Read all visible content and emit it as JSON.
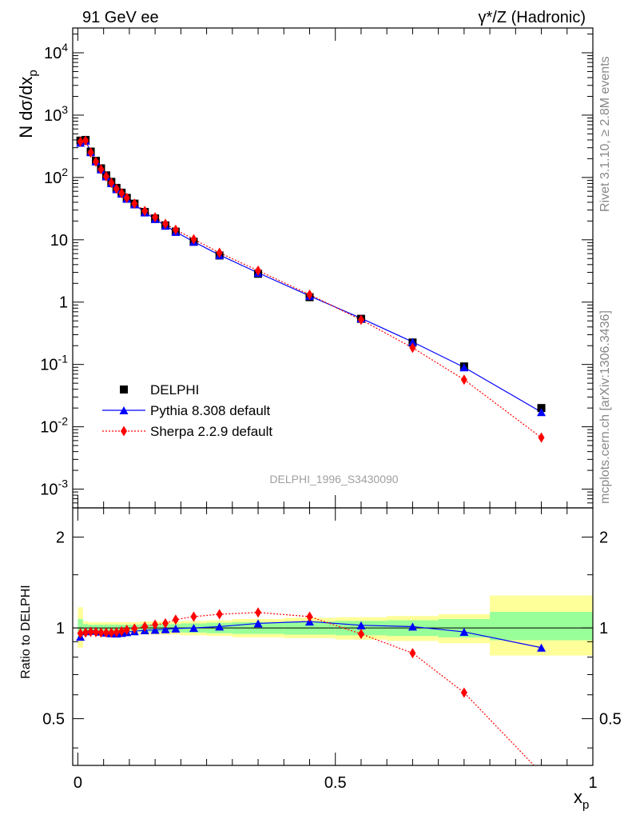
{
  "header": {
    "left": "91 GeV ee",
    "right": "γ*/Z (Hadronic)"
  },
  "side_labels": {
    "rivet": "Rivet 3.1.10, ≥ 2.8M events",
    "mcplots": "mcplots.cern.ch [arXiv:1306.3436]"
  },
  "analysis_tag": "DELPHI_1996_S3430090",
  "colors": {
    "data": "#000000",
    "pythia": "#0000ff",
    "sherpa": "#ff0000",
    "band_inner": "#99ff99",
    "band_outer": "#ffff99"
  },
  "chart_data": [
    {
      "type": "scatter",
      "panel": "main",
      "ylabel": "N dσ/dx_p",
      "yscale": "log",
      "ylim": [
        0.0005,
        25000
      ],
      "xlim": [
        -0.01,
        1.0
      ],
      "ytick_labels": [
        "10^-3",
        "10^-2",
        "10^-1",
        "1",
        "10",
        "10^2",
        "10^3",
        "10^4"
      ],
      "legend_position": "middle-left",
      "series": [
        {
          "name": "DELPHI",
          "style": "markers-square",
          "x": [
            0.005,
            0.015,
            0.025,
            0.035,
            0.045,
            0.055,
            0.065,
            0.075,
            0.085,
            0.095,
            0.11,
            0.13,
            0.15,
            0.17,
            0.19,
            0.225,
            0.275,
            0.35,
            0.45,
            0.55,
            0.65,
            0.75,
            0.9
          ],
          "y": [
            390,
            400,
            260,
            185,
            140,
            108,
            85,
            68,
            57,
            47,
            38,
            28,
            22,
            17,
            13.5,
            9.3,
            5.6,
            2.85,
            1.2,
            0.54,
            0.225,
            0.093,
            0.02
          ]
        },
        {
          "name": "Pythia 8.308 default",
          "style": "line-triangle",
          "x": [
            0.005,
            0.015,
            0.025,
            0.035,
            0.045,
            0.055,
            0.065,
            0.075,
            0.085,
            0.095,
            0.11,
            0.13,
            0.15,
            0.17,
            0.19,
            0.225,
            0.275,
            0.35,
            0.45,
            0.55,
            0.65,
            0.75,
            0.9
          ],
          "y": [
            360,
            390,
            255,
            181,
            135,
            104,
            81,
            65,
            55,
            45.5,
            37,
            27.5,
            21.5,
            16.8,
            13.4,
            9.3,
            5.7,
            2.95,
            1.26,
            0.55,
            0.23,
            0.09,
            0.0172
          ]
        },
        {
          "name": "Sherpa 2.2.9 default",
          "style": "dotted-diamond",
          "x": [
            0.005,
            0.015,
            0.025,
            0.035,
            0.045,
            0.055,
            0.065,
            0.075,
            0.085,
            0.095,
            0.11,
            0.13,
            0.15,
            0.17,
            0.19,
            0.225,
            0.275,
            0.35,
            0.45,
            0.55,
            0.65,
            0.75,
            0.9
          ],
          "y": [
            375,
            390,
            252,
            179,
            135,
            104,
            82,
            66,
            56,
            47,
            38,
            29,
            23,
            18,
            14.5,
            10.2,
            6.2,
            3.2,
            1.32,
            0.52,
            0.185,
            0.057,
            0.0067
          ]
        }
      ]
    },
    {
      "type": "line",
      "panel": "ratio",
      "ylabel": "Ratio to DELPHI",
      "xlabel": "x_p",
      "yscale": "log",
      "ylim": [
        0.35,
        2.5
      ],
      "xlim": [
        -0.01,
        1.0
      ],
      "xtick_labels": [
        "0",
        "0.5",
        "1"
      ],
      "ytick_labels": [
        "0.5",
        "1",
        "2"
      ],
      "reference_line": 1,
      "band": {
        "edges": [
          0.0,
          0.01,
          0.02,
          0.03,
          0.04,
          0.05,
          0.06,
          0.07,
          0.08,
          0.09,
          0.1,
          0.12,
          0.14,
          0.16,
          0.18,
          0.2,
          0.25,
          0.3,
          0.4,
          0.5,
          0.6,
          0.7,
          0.8,
          1.0
        ],
        "inner_lo": [
          0.93,
          0.97,
          0.975,
          0.975,
          0.975,
          0.975,
          0.975,
          0.975,
          0.975,
          0.975,
          0.975,
          0.97,
          0.97,
          0.97,
          0.97,
          0.965,
          0.96,
          0.955,
          0.95,
          0.945,
          0.94,
          0.93,
          0.91
        ],
        "inner_hi": [
          1.07,
          1.03,
          1.025,
          1.025,
          1.025,
          1.025,
          1.025,
          1.025,
          1.025,
          1.025,
          1.025,
          1.03,
          1.03,
          1.03,
          1.03,
          1.035,
          1.04,
          1.045,
          1.05,
          1.055,
          1.06,
          1.07,
          1.13
        ],
        "outer_lo": [
          0.86,
          0.95,
          0.955,
          0.955,
          0.955,
          0.955,
          0.955,
          0.955,
          0.955,
          0.955,
          0.955,
          0.95,
          0.95,
          0.95,
          0.95,
          0.945,
          0.94,
          0.93,
          0.925,
          0.915,
          0.905,
          0.89,
          0.81
        ],
        "outer_hi": [
          1.17,
          1.05,
          1.045,
          1.045,
          1.045,
          1.045,
          1.045,
          1.045,
          1.045,
          1.045,
          1.045,
          1.05,
          1.05,
          1.05,
          1.05,
          1.055,
          1.06,
          1.07,
          1.08,
          1.085,
          1.095,
          1.11,
          1.28
        ]
      },
      "series": [
        {
          "name": "Pythia 8.308 default",
          "x": [
            0.005,
            0.015,
            0.025,
            0.035,
            0.045,
            0.055,
            0.065,
            0.075,
            0.085,
            0.095,
            0.11,
            0.13,
            0.15,
            0.17,
            0.19,
            0.225,
            0.275,
            0.35,
            0.45,
            0.55,
            0.65,
            0.75,
            0.9
          ],
          "y": [
            0.935,
            0.975,
            0.98,
            0.978,
            0.972,
            0.965,
            0.96,
            0.958,
            0.962,
            0.968,
            0.975,
            0.982,
            0.985,
            0.99,
            0.995,
            1.0,
            1.01,
            1.035,
            1.05,
            1.02,
            1.01,
            0.97,
            0.86
          ]
        },
        {
          "name": "Sherpa 2.2.9 default",
          "x": [
            0.005,
            0.015,
            0.025,
            0.035,
            0.045,
            0.055,
            0.065,
            0.075,
            0.085,
            0.095,
            0.11,
            0.13,
            0.15,
            0.17,
            0.19,
            0.225,
            0.275,
            0.35,
            0.45,
            0.55,
            0.65,
            0.75,
            0.9
          ],
          "y": [
            0.96,
            0.965,
            0.97,
            0.968,
            0.965,
            0.965,
            0.965,
            0.968,
            0.975,
            0.985,
            0.995,
            1.01,
            1.025,
            1.035,
            1.065,
            1.09,
            1.11,
            1.125,
            1.09,
            0.955,
            0.825,
            0.61,
            0.33
          ]
        }
      ]
    }
  ]
}
